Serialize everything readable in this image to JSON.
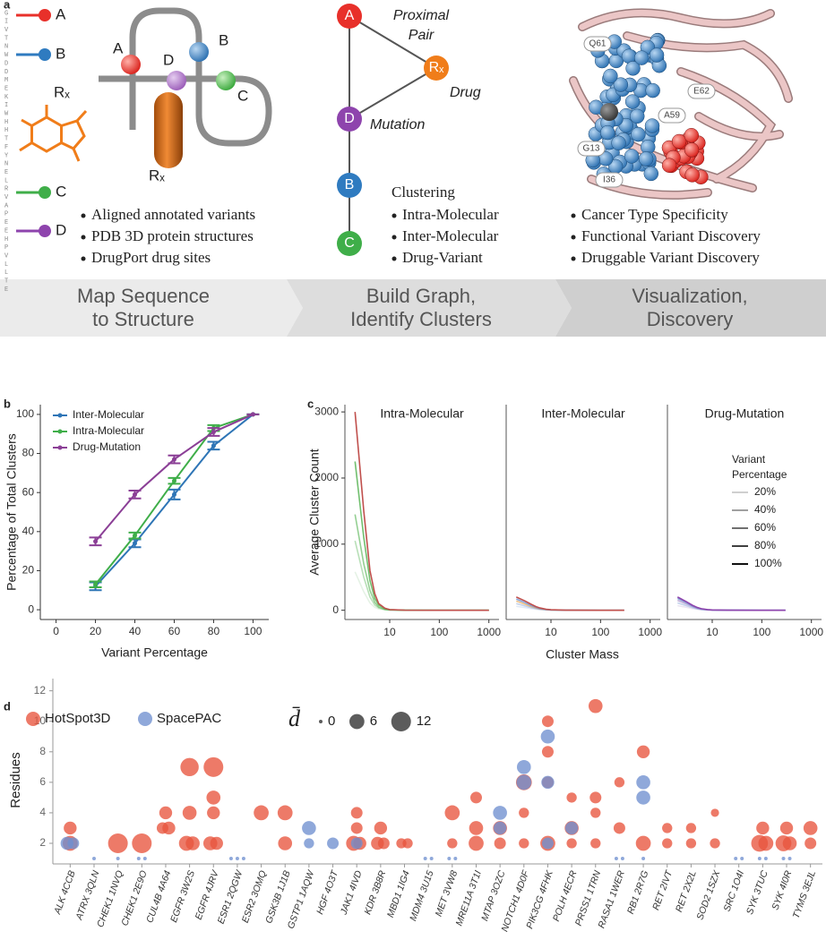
{
  "panel_a": {
    "label": "a",
    "sequence": "HGIVTNWDDMEKIWHHTFYNELRVAPEEHPVLLTE",
    "legend": [
      "A",
      "B",
      "Rₓ",
      "C",
      "D"
    ],
    "structure_labels": [
      "A",
      "D",
      "B",
      "C",
      "Rₓ"
    ],
    "sources": [
      "Aligned annotated variants",
      "PDB 3D protein structures",
      "DrugPort drug sites"
    ],
    "graph_nodes": [
      "A",
      "Rₓ",
      "D",
      "B",
      "C"
    ],
    "graph_annotations": {
      "proximal_pair": [
        "Proximal",
        "Pair"
      ],
      "drug": "Drug",
      "mutation": "Mutation"
    },
    "clustering": {
      "title": "Clustering",
      "items": [
        "Intra-Molecular",
        "Inter-Molecular",
        "Drug-Variant"
      ]
    },
    "residues": [
      "Q61",
      "E62",
      "A59",
      "G13",
      "I36"
    ],
    "outcomes": [
      "Cancer Type Specificity",
      "Functional Variant Discovery",
      "Druggable Variant Discovery"
    ],
    "steps": [
      [
        "Map Sequence",
        "to Structure"
      ],
      [
        "Build Graph,",
        "Identify Clusters"
      ],
      [
        "Visualization,",
        "Discovery"
      ]
    ]
  },
  "chart_data": [
    {
      "panel_label": "b",
      "type": "line",
      "x": [
        20,
        40,
        60,
        80,
        100
      ],
      "xlim": [
        -8,
        108
      ],
      "xticks": [
        0,
        20,
        40,
        60,
        80,
        100
      ],
      "ylim": [
        -5,
        105
      ],
      "yticks": [
        0,
        20,
        40,
        60,
        80,
        100
      ],
      "xlabel": "Variant Percentage",
      "ylabel": "Percentage of Total Clusters",
      "legend": "upper left",
      "series": [
        {
          "name": "Inter-Molecular",
          "color": "#2e75b6",
          "values": [
            12,
            34,
            59,
            84,
            100
          ],
          "errors": [
            2,
            2,
            2.5,
            2,
            0
          ]
        },
        {
          "name": "Intra-Molecular",
          "color": "#3fae49",
          "values": [
            13,
            38,
            66,
            93,
            100
          ],
          "errors": [
            1.5,
            1.5,
            1.5,
            1.5,
            0
          ]
        },
        {
          "name": "Drug-Mutation",
          "color": "#8b3f96",
          "values": [
            35,
            59,
            77,
            91,
            100
          ],
          "errors": [
            2,
            2,
            2,
            2,
            0
          ]
        }
      ]
    },
    {
      "panel_label": "c",
      "type": "line",
      "log_x": true,
      "xlim": [
        1.25,
        1600
      ],
      "xticks": [
        10,
        100,
        1000
      ],
      "ylim": [
        -140,
        3110
      ],
      "yticks": [
        0,
        1000,
        2000,
        3000
      ],
      "xlabel": "Cluster Mass",
      "ylabel": "Average Cluster Count",
      "legend": {
        "title": [
          "Variant",
          "Percentage"
        ],
        "labels": [
          "20%",
          "40%",
          "60%",
          "80%",
          "100%"
        ],
        "opacity": [
          0.2,
          0.4,
          0.6,
          0.8,
          1
        ]
      },
      "facets": [
        {
          "title": "Intra-Molecular",
          "x": [
            2,
            3,
            4,
            5,
            6,
            8,
            10,
            20,
            100,
            1000
          ],
          "series": [
            {
              "color": "#7fbf7b",
              "values": [
                580,
                280,
                110,
                45,
                20,
                6,
                2,
                0,
                0,
                0
              ]
            },
            {
              "color": "#4daf4a",
              "values": [
                1050,
                500,
                200,
                80,
                35,
                10,
                4,
                1,
                0,
                0
              ]
            },
            {
              "color": "#4daf4a",
              "values": [
                1450,
                700,
                300,
                120,
                50,
                15,
                5,
                1,
                0,
                0
              ]
            },
            {
              "color": "#4daf4a",
              "values": [
                2250,
                1100,
                450,
                180,
                80,
                25,
                8,
                2,
                0,
                0
              ]
            },
            {
              "color": "#c0504d",
              "values": [
                3000,
                1500,
                600,
                250,
                100,
                30,
                10,
                2,
                0,
                0
              ]
            }
          ]
        },
        {
          "title": "Inter-Molecular",
          "x": [
            2,
            3,
            4,
            5,
            6,
            8,
            10,
            20,
            100,
            300
          ],
          "series": [
            {
              "color": "#6a8fd0",
              "values": [
                60,
                40,
                25,
                15,
                10,
                5,
                2,
                0,
                0,
                0
              ]
            },
            {
              "color": "#6a8fd0",
              "values": [
                100,
                65,
                40,
                25,
                15,
                7,
                3,
                1,
                0,
                0
              ]
            },
            {
              "color": "#e39a3b",
              "values": [
                140,
                90,
                55,
                35,
                20,
                9,
                4,
                1,
                0,
                0
              ]
            },
            {
              "color": "#6a8fd0",
              "values": [
                170,
                115,
                70,
                45,
                25,
                11,
                5,
                1,
                0,
                0
              ]
            },
            {
              "color": "#c0504d",
              "values": [
                200,
                140,
                90,
                55,
                35,
                15,
                8,
                2,
                0,
                0
              ]
            }
          ]
        },
        {
          "title": "Drug-Mutation",
          "x": [
            2,
            3,
            4,
            5,
            6,
            8,
            10,
            20,
            100,
            300
          ],
          "series": [
            {
              "color": "#9b7fc0",
              "values": [
                70,
                45,
                25,
                15,
                8,
                4,
                2,
                0,
                0,
                0
              ]
            },
            {
              "color": "#6a8fd0",
              "values": [
                110,
                70,
                40,
                22,
                12,
                5,
                2,
                0,
                0,
                0
              ]
            },
            {
              "color": "#9b7fc0",
              "values": [
                150,
                95,
                55,
                30,
                16,
                7,
                3,
                1,
                0,
                0
              ]
            },
            {
              "color": "#6a8fd0",
              "values": [
                180,
                115,
                65,
                36,
                20,
                9,
                4,
                1,
                0,
                0
              ]
            },
            {
              "color": "#8e44ad",
              "values": [
                200,
                130,
                75,
                42,
                24,
                10,
                5,
                1,
                0,
                0
              ]
            }
          ]
        }
      ]
    },
    {
      "panel_label": "d",
      "type": "scatter",
      "ylabel": "Residues",
      "ylim": [
        0.65,
        12.8
      ],
      "yticks": [
        2,
        4,
        6,
        8,
        10,
        12
      ],
      "categories": [
        "ALK 4CCB",
        "ATRX 3QLN",
        "CHEK1 1NVQ",
        "CHEK1 2E9O",
        "CUL4B 4A64",
        "EGFR 3W2S",
        "EGFR 4JRV",
        "ESR1 2QGW",
        "ESR2 3OMQ",
        "GSK3B 1J1B",
        "GSTP1 1AQW",
        "HGF 4O3T",
        "JAK1 4IVD",
        "KDR 3B8R",
        "MBD1 1IG4",
        "MDM4 3U15",
        "MET 3VW8",
        "MRE11A 3T1I",
        "MTAP 3OZC",
        "NOTCH1 4D0F",
        "PIK3CG 4FHK",
        "POLH 4ECR",
        "PRSS1 1TRN",
        "RASA1 1WER",
        "RB1 2R7G",
        "RET 2IVT",
        "RET 2X2L",
        "SOD2 1SZX",
        "SRC 1O4I",
        "SYK 3TUC",
        "SYK 4I0R",
        "TYMS 3EJL"
      ],
      "size_legend": {
        "symbol": "d̄",
        "values": [
          0,
          6,
          12
        ]
      },
      "series": [
        {
          "name": "HotSpot3D",
          "color": "#e8553d",
          "x": [
            "ALK 4CCB",
            "ALK 4CCB",
            "CHEK1 1NVQ",
            "CHEK1 2E9O",
            "CUL4B 4A64",
            "CUL4B 4A64",
            "CUL4B 4A64",
            "EGFR 3W2S",
            "EGFR 3W2S",
            "EGFR 3W2S",
            "EGFR 3W2S",
            "EGFR 4JRV",
            "EGFR 4JRV",
            "EGFR 4JRV",
            "EGFR 4JRV",
            "EGFR 4JRV",
            "ESR2 3OMQ",
            "GSK3B 1J1B",
            "GSK3B 1J1B",
            "JAK1 4IVD",
            "JAK1 4IVD",
            "JAK1 4IVD",
            "JAK1 4IVD",
            "KDR 3B8R",
            "KDR 3B8R",
            "KDR 3B8R",
            "MBD1 1IG4",
            "MBD1 1IG4",
            "MET 3VW8",
            "MET 3VW8",
            "MRE11A 3T1I",
            "MRE11A 3T1I",
            "MRE11A 3T1I",
            "MTAP 3OZC",
            "MTAP 3OZC",
            "NOTCH1 4D0F",
            "NOTCH1 4D0F",
            "NOTCH1 4D0F",
            "PIK3CG 4FHK",
            "PIK3CG 4FHK",
            "PIK3CG 4FHK",
            "PIK3CG 4FHK",
            "POLH 4ECR",
            "POLH 4ECR",
            "POLH 4ECR",
            "PRSS1 1TRN",
            "PRSS1 1TRN",
            "PRSS1 1TRN",
            "PRSS1 1TRN",
            "RASA1 1WER",
            "RASA1 1WER",
            "RB1 2R7G",
            "RB1 2R7G",
            "RET 2IVT",
            "RET 2IVT",
            "RET 2X2L",
            "RET 2X2L",
            "SOD2 1SZX",
            "SOD2 1SZX",
            "SYK 3TUC",
            "SYK 3TUC",
            "SYK 3TUC",
            "SYK 4I0R",
            "SYK 4I0R",
            "SYK 4I0R",
            "TYMS 3EJL",
            "TYMS 3EJL"
          ],
          "values": [
            3,
            2,
            2,
            2,
            4,
            3,
            3,
            7,
            4,
            2,
            2,
            7,
            5,
            4,
            2,
            2,
            4,
            4,
            2,
            4,
            3,
            2,
            2,
            3,
            2,
            2,
            2,
            2,
            4,
            2,
            5,
            3,
            2,
            3,
            2,
            6,
            4,
            2,
            10,
            8,
            6,
            2,
            5,
            3,
            2,
            11,
            5,
            4,
            2,
            6,
            3,
            8,
            2,
            3,
            2,
            3,
            2,
            4,
            2,
            3,
            2,
            2,
            3,
            2,
            2,
            3,
            2
          ],
          "sizes": [
            4,
            6,
            12,
            12,
            4,
            3,
            4,
            10,
            5,
            6,
            5,
            12,
            5,
            4,
            5,
            4,
            6,
            6,
            5,
            3,
            3,
            6,
            4,
            4,
            4,
            3,
            2,
            2,
            6,
            2,
            3,
            5,
            6,
            5,
            3,
            7,
            2,
            2,
            3,
            3,
            3,
            6,
            2,
            5,
            2,
            5,
            3,
            2,
            2,
            2,
            3,
            4,
            6,
            2,
            2,
            2,
            2,
            1,
            2,
            4,
            8,
            6,
            4,
            7,
            5,
            5,
            3
          ]
        },
        {
          "name": "SpacePAC",
          "color": "#6f8fd0",
          "x": [
            "ALK 4CCB",
            "ALK 4CCB",
            "ATRX 3QLN",
            "CHEK1 1NVQ",
            "CHEK1 2E9O",
            "CHEK1 2E9O",
            "ESR1 2QGW",
            "ESR1 2QGW",
            "ESR1 2QGW",
            "GSTP1 1AQW",
            "GSTP1 1AQW",
            "HGF 4O3T",
            "JAK1 4IVD",
            "MDM4 3U15",
            "MDM4 3U15",
            "MET 3VW8",
            "MET 3VW8",
            "MTAP 3OZC",
            "MTAP 3OZC",
            "NOTCH1 4D0F",
            "NOTCH1 4D0F",
            "PIK3CG 4FHK",
            "PIK3CG 4FHK",
            "PIK3CG 4FHK",
            "POLH 4ECR",
            "RASA1 1WER",
            "RASA1 1WER",
            "RB1 2R7G",
            "RB1 2R7G",
            "RB1 2R7G",
            "SRC 1O4I",
            "SRC 1O4I",
            "SYK 3TUC",
            "SYK 3TUC",
            "SYK 4I0R",
            "SYK 4I0R"
          ],
          "values": [
            2,
            2,
            1,
            1,
            1,
            1,
            1,
            1,
            1,
            3,
            2,
            2,
            2,
            1,
            1,
            1,
            1,
            4,
            3,
            7,
            6,
            9,
            6,
            2,
            3,
            1,
            1,
            6,
            5,
            1,
            1,
            1,
            1,
            1,
            1,
            1
          ],
          "sizes": [
            4,
            3,
            0,
            0,
            0,
            0,
            0,
            0,
            0,
            5,
            2,
            3,
            3,
            0,
            0,
            0,
            0,
            5,
            4,
            5,
            6,
            5,
            4,
            3,
            4,
            0,
            0,
            5,
            5,
            0,
            0,
            0,
            0,
            0,
            0,
            0
          ]
        }
      ]
    }
  ]
}
